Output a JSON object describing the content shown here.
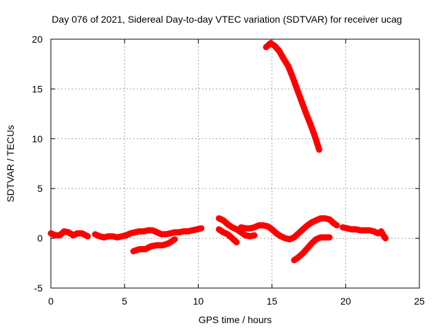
{
  "chart_data": {
    "type": "scatter",
    "title": "Day 076 of 2021, Sidereal Day-to-day VTEC variation (SDTVAR) for receiver ucag",
    "xlabel": "GPS time / hours",
    "ylabel": "SDTVAR / TECUs",
    "xlim": [
      0,
      25
    ],
    "ylim": [
      -5,
      20
    ],
    "xticks": [
      "0",
      "5",
      "10",
      "15",
      "20",
      "25"
    ],
    "yticks": [
      "-5",
      "0",
      "5",
      "10",
      "15",
      "20"
    ],
    "grid": true,
    "series": [
      {
        "name": "arc-1",
        "color": "#ff0000",
        "points": [
          [
            0.0,
            0.5
          ],
          [
            0.3,
            0.3
          ],
          [
            0.6,
            0.3
          ],
          [
            0.9,
            0.7
          ],
          [
            1.2,
            0.6
          ],
          [
            1.5,
            0.3
          ],
          [
            1.8,
            0.5
          ],
          [
            2.1,
            0.5
          ],
          [
            2.5,
            0.2
          ]
        ]
      },
      {
        "name": "arc-2",
        "color": "#ff0000",
        "points": [
          [
            3.0,
            0.4
          ],
          [
            3.3,
            0.2
          ],
          [
            3.6,
            0.1
          ],
          [
            3.9,
            0.2
          ],
          [
            4.2,
            0.2
          ],
          [
            4.5,
            0.1
          ],
          [
            4.8,
            0.2
          ],
          [
            5.1,
            0.3
          ],
          [
            5.4,
            0.5
          ],
          [
            5.7,
            0.6
          ],
          [
            6.0,
            0.7
          ],
          [
            6.3,
            0.7
          ],
          [
            6.6,
            0.8
          ],
          [
            6.9,
            0.8
          ],
          [
            7.2,
            0.6
          ],
          [
            7.5,
            0.4
          ],
          [
            7.8,
            0.4
          ],
          [
            8.1,
            0.5
          ],
          [
            8.4,
            0.6
          ],
          [
            8.7,
            0.6
          ],
          [
            9.0,
            0.7
          ],
          [
            9.3,
            0.7
          ],
          [
            9.6,
            0.8
          ],
          [
            9.9,
            0.9
          ],
          [
            10.2,
            1.0
          ]
        ]
      },
      {
        "name": "arc-3",
        "color": "#ff0000",
        "points": [
          [
            5.6,
            -1.3
          ],
          [
            6.0,
            -1.1
          ],
          [
            6.4,
            -1.1
          ],
          [
            6.8,
            -0.8
          ],
          [
            7.2,
            -0.7
          ],
          [
            7.6,
            -0.7
          ],
          [
            8.0,
            -0.5
          ],
          [
            8.4,
            -0.1
          ]
        ]
      },
      {
        "name": "arc-4",
        "color": "#ff0000",
        "points": [
          [
            11.4,
            2.0
          ],
          [
            11.7,
            1.8
          ],
          [
            12.0,
            1.4
          ],
          [
            12.3,
            1.1
          ],
          [
            12.6,
            0.9
          ],
          [
            12.9,
            0.6
          ],
          [
            13.2,
            0.3
          ],
          [
            13.5,
            0.2
          ],
          [
            13.8,
            0.3
          ]
        ]
      },
      {
        "name": "arc-5",
        "color": "#ff0000",
        "points": [
          [
            11.4,
            0.9
          ],
          [
            11.7,
            0.6
          ],
          [
            12.0,
            0.4
          ],
          [
            12.3,
            0.0
          ],
          [
            12.6,
            -0.4
          ]
        ]
      },
      {
        "name": "arc-6",
        "color": "#ff0000",
        "points": [
          [
            12.9,
            1.1
          ],
          [
            13.2,
            1.0
          ],
          [
            13.5,
            1.0
          ],
          [
            13.8,
            1.1
          ],
          [
            14.1,
            1.3
          ],
          [
            14.4,
            1.3
          ],
          [
            14.7,
            1.2
          ],
          [
            15.0,
            0.9
          ],
          [
            15.3,
            0.5
          ],
          [
            15.6,
            0.2
          ],
          [
            15.9,
            0.0
          ],
          [
            16.2,
            -0.1
          ],
          [
            16.5,
            0.1
          ],
          [
            16.8,
            0.5
          ],
          [
            17.1,
            0.9
          ],
          [
            17.4,
            1.3
          ],
          [
            17.7,
            1.6
          ],
          [
            18.0,
            1.8
          ],
          [
            18.3,
            2.0
          ],
          [
            18.6,
            2.0
          ],
          [
            18.9,
            1.9
          ],
          [
            19.2,
            1.5
          ],
          [
            19.4,
            1.3
          ]
        ]
      },
      {
        "name": "arc-7",
        "color": "#ff0000",
        "points": [
          [
            16.5,
            -2.2
          ],
          [
            16.8,
            -1.9
          ],
          [
            17.1,
            -1.5
          ],
          [
            17.4,
            -1.0
          ],
          [
            17.7,
            -0.5
          ],
          [
            18.0,
            -0.1
          ],
          [
            18.3,
            0.1
          ],
          [
            18.6,
            0.1
          ],
          [
            18.9,
            0.1
          ]
        ]
      },
      {
        "name": "arc-8",
        "color": "#ff0000",
        "points": [
          [
            19.8,
            1.1
          ],
          [
            20.1,
            1.0
          ],
          [
            20.4,
            0.9
          ],
          [
            20.7,
            0.9
          ],
          [
            21.0,
            0.8
          ],
          [
            21.3,
            0.8
          ],
          [
            21.6,
            0.8
          ],
          [
            21.9,
            0.7
          ],
          [
            22.2,
            0.5
          ]
        ]
      },
      {
        "name": "arc-9",
        "color": "#ff0000",
        "points": [
          [
            22.4,
            0.7
          ],
          [
            22.6,
            0.2
          ],
          [
            22.7,
            0.0
          ]
        ]
      },
      {
        "name": "arc-10",
        "color": "#ff0000",
        "points": [
          [
            14.6,
            19.2
          ],
          [
            14.9,
            19.6
          ],
          [
            15.2,
            19.3
          ],
          [
            15.5,
            18.8
          ],
          [
            15.8,
            18.0
          ],
          [
            16.1,
            17.3
          ],
          [
            16.4,
            16.2
          ],
          [
            16.7,
            15.0
          ],
          [
            17.0,
            13.8
          ],
          [
            17.3,
            12.6
          ],
          [
            17.6,
            11.5
          ],
          [
            17.9,
            10.3
          ],
          [
            18.2,
            8.9
          ]
        ]
      }
    ]
  }
}
